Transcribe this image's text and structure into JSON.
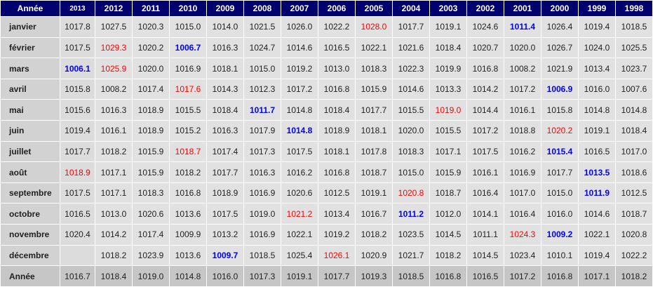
{
  "table": {
    "corner": "Année",
    "years": [
      "2013",
      "2012",
      "2011",
      "2010",
      "2009",
      "2008",
      "2007",
      "2006",
      "2005",
      "2004",
      "2003",
      "2002",
      "2001",
      "2000",
      "1999",
      "1998"
    ],
    "rows": [
      {
        "label": "janvier",
        "values": [
          1017.8,
          1027.5,
          1020.3,
          1015.0,
          1014.0,
          1021.5,
          1026.0,
          1022.2,
          1028.0,
          1017.7,
          1019.1,
          1024.6,
          1011.4,
          1026.4,
          1019.4,
          1018.5
        ]
      },
      {
        "label": "février",
        "values": [
          1017.5,
          1029.3,
          1020.2,
          1006.7,
          1016.3,
          1024.7,
          1014.6,
          1016.5,
          1022.1,
          1021.6,
          1018.4,
          1020.7,
          1020.0,
          1026.7,
          1024.0,
          1025.5
        ]
      },
      {
        "label": "mars",
        "values": [
          1006.1,
          1025.9,
          1020.0,
          1016.9,
          1018.1,
          1015.0,
          1019.2,
          1013.0,
          1018.3,
          1022.3,
          1019.9,
          1016.8,
          1008.2,
          1021.9,
          1013.4,
          1023.7
        ]
      },
      {
        "label": "avril",
        "values": [
          1015.8,
          1008.2,
          1017.4,
          1017.6,
          1014.3,
          1012.3,
          1017.2,
          1016.8,
          1015.9,
          1014.6,
          1013.3,
          1014.2,
          1017.2,
          1006.9,
          1016.0,
          1007.6
        ]
      },
      {
        "label": "mai",
        "values": [
          1015.6,
          1016.3,
          1018.9,
          1015.5,
          1018.4,
          1011.7,
          1014.8,
          1018.4,
          1017.7,
          1015.5,
          1019.0,
          1014.4,
          1016.1,
          1015.8,
          1014.8,
          1014.8
        ]
      },
      {
        "label": "juin",
        "values": [
          1019.4,
          1016.1,
          1018.9,
          1015.2,
          1016.3,
          1017.9,
          1014.8,
          1018.9,
          1018.1,
          1020.0,
          1015.5,
          1017.2,
          1018.8,
          1020.2,
          1019.1,
          1018.4
        ]
      },
      {
        "label": "juillet",
        "values": [
          1017.7,
          1018.2,
          1015.9,
          1018.7,
          1017.4,
          1017.3,
          1017.5,
          1018.1,
          1017.8,
          1018.3,
          1017.1,
          1017.5,
          1016.2,
          1015.4,
          1016.5,
          1017.0
        ]
      },
      {
        "label": "août",
        "values": [
          1018.9,
          1017.1,
          1015.9,
          1018.2,
          1017.7,
          1016.3,
          1016.2,
          1016.8,
          1018.7,
          1015.0,
          1015.9,
          1016.1,
          1016.9,
          1017.7,
          1013.5,
          1018.6
        ]
      },
      {
        "label": "septembre",
        "values": [
          1017.5,
          1017.1,
          1018.3,
          1016.8,
          1018.9,
          1016.9,
          1020.6,
          1012.5,
          1019.1,
          1020.8,
          1018.7,
          1016.4,
          1017.0,
          1015.0,
          1011.9,
          1012.5
        ]
      },
      {
        "label": "octobre",
        "values": [
          1016.5,
          1013.0,
          1020.6,
          1013.6,
          1017.5,
          1019.0,
          1021.2,
          1013.4,
          1016.7,
          1011.2,
          1012.0,
          1014.1,
          1016.4,
          1016.0,
          1014.6,
          1018.7
        ]
      },
      {
        "label": "novembre",
        "values": [
          1020.4,
          1014.2,
          1017.4,
          1009.9,
          1013.2,
          1016.9,
          1022.1,
          1019.2,
          1018.2,
          1023.5,
          1014.5,
          1011.1,
          1024.3,
          1009.2,
          1022.1,
          1020.8
        ]
      },
      {
        "label": "décembre",
        "values": [
          null,
          1018.2,
          1023.9,
          1013.6,
          1009.7,
          1018.5,
          1025.4,
          1026.1,
          1020.9,
          1021.7,
          1018.2,
          1014.5,
          1023.4,
          1010.1,
          1019.4,
          1022.2
        ]
      }
    ],
    "total": {
      "label": "Année",
      "values": [
        1016.7,
        1018.4,
        1019.0,
        1014.8,
        1016.0,
        1017.3,
        1019.1,
        1017.7,
        1019.3,
        1018.5,
        1016.8,
        1016.5,
        1017.2,
        1016.8,
        1017.1,
        1018.2
      ]
    },
    "max_color": "#ff0000",
    "min_color": "#0000ff"
  }
}
